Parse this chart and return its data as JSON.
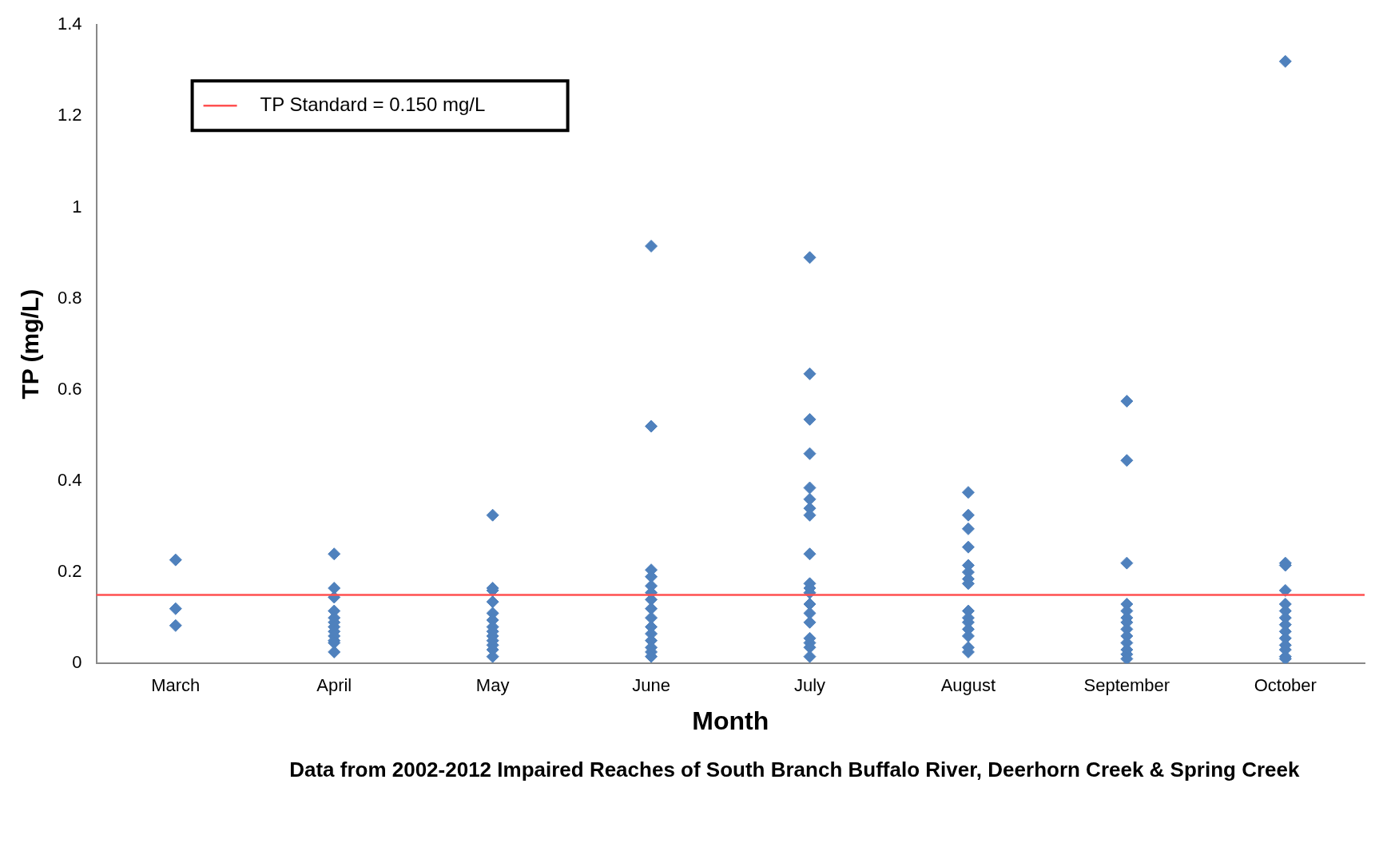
{
  "chart_data": {
    "type": "scatter",
    "xlabel": "Month",
    "ylabel": "TP (mg/L)",
    "annotations": [
      "Data from 2002-2012 Impaired Reaches of South Branch Buffalo River, Deerhorn Creek & Spring Creek"
    ],
    "categories": [
      "March",
      "April",
      "May",
      "June",
      "July",
      "August",
      "September",
      "October"
    ],
    "ylim": [
      0,
      1.4
    ],
    "yticks": [
      0,
      0.2,
      0.4,
      0.6,
      0.8,
      1,
      1.2,
      1.4
    ],
    "grid": false,
    "marker": "diamond",
    "legend": "top left",
    "ref_lines": [
      {
        "axis": "y",
        "value": 0.15,
        "label": "TP Standard = 0.150 mg/L",
        "color": "#ff5050"
      }
    ],
    "series": [
      {
        "color": "#4f81bd",
        "x": [
          "March",
          "March",
          "March",
          "April",
          "April",
          "April",
          "April",
          "April",
          "April",
          "April",
          "April",
          "April",
          "April",
          "April",
          "April",
          "May",
          "May",
          "May",
          "May",
          "May",
          "May",
          "May",
          "May",
          "May",
          "May",
          "May",
          "May",
          "May",
          "June",
          "June",
          "June",
          "June",
          "June",
          "June",
          "June",
          "June",
          "June",
          "June",
          "June",
          "June",
          "June",
          "June",
          "June",
          "July",
          "July",
          "July",
          "July",
          "July",
          "July",
          "July",
          "July",
          "July",
          "July",
          "July",
          "July",
          "July",
          "July",
          "July",
          "July",
          "July",
          "July",
          "July",
          "August",
          "August",
          "August",
          "August",
          "August",
          "August",
          "August",
          "August",
          "August",
          "August",
          "August",
          "August",
          "August",
          "August",
          "August",
          "September",
          "September",
          "September",
          "September",
          "September",
          "September",
          "September",
          "September",
          "September",
          "September",
          "September",
          "September",
          "September",
          "October",
          "October",
          "October",
          "October",
          "October",
          "October",
          "October",
          "October",
          "October",
          "October",
          "October",
          "October",
          "October",
          "October"
        ],
        "values": [
          0.227,
          0.12,
          0.083,
          0.24,
          0.165,
          0.145,
          0.115,
          0.1,
          0.09,
          0.08,
          0.07,
          0.06,
          0.05,
          0.045,
          0.025,
          0.325,
          0.165,
          0.16,
          0.135,
          0.11,
          0.095,
          0.08,
          0.07,
          0.06,
          0.05,
          0.04,
          0.03,
          0.015,
          0.915,
          0.52,
          0.205,
          0.19,
          0.17,
          0.155,
          0.14,
          0.12,
          0.1,
          0.08,
          0.065,
          0.05,
          0.035,
          0.025,
          0.015,
          0.89,
          0.635,
          0.535,
          0.46,
          0.385,
          0.36,
          0.34,
          0.325,
          0.24,
          0.175,
          0.165,
          0.155,
          0.13,
          0.11,
          0.09,
          0.055,
          0.045,
          0.035,
          0.015,
          0.375,
          0.325,
          0.295,
          0.255,
          0.215,
          0.2,
          0.185,
          0.175,
          0.115,
          0.1,
          0.09,
          0.075,
          0.06,
          0.035,
          0.025,
          0.575,
          0.445,
          0.22,
          0.13,
          0.115,
          0.1,
          0.09,
          0.075,
          0.06,
          0.045,
          0.03,
          0.02,
          0.01,
          1.32,
          0.22,
          0.215,
          0.16,
          0.13,
          0.115,
          0.1,
          0.085,
          0.07,
          0.055,
          0.04,
          0.03,
          0.015,
          0.01
        ]
      }
    ]
  }
}
